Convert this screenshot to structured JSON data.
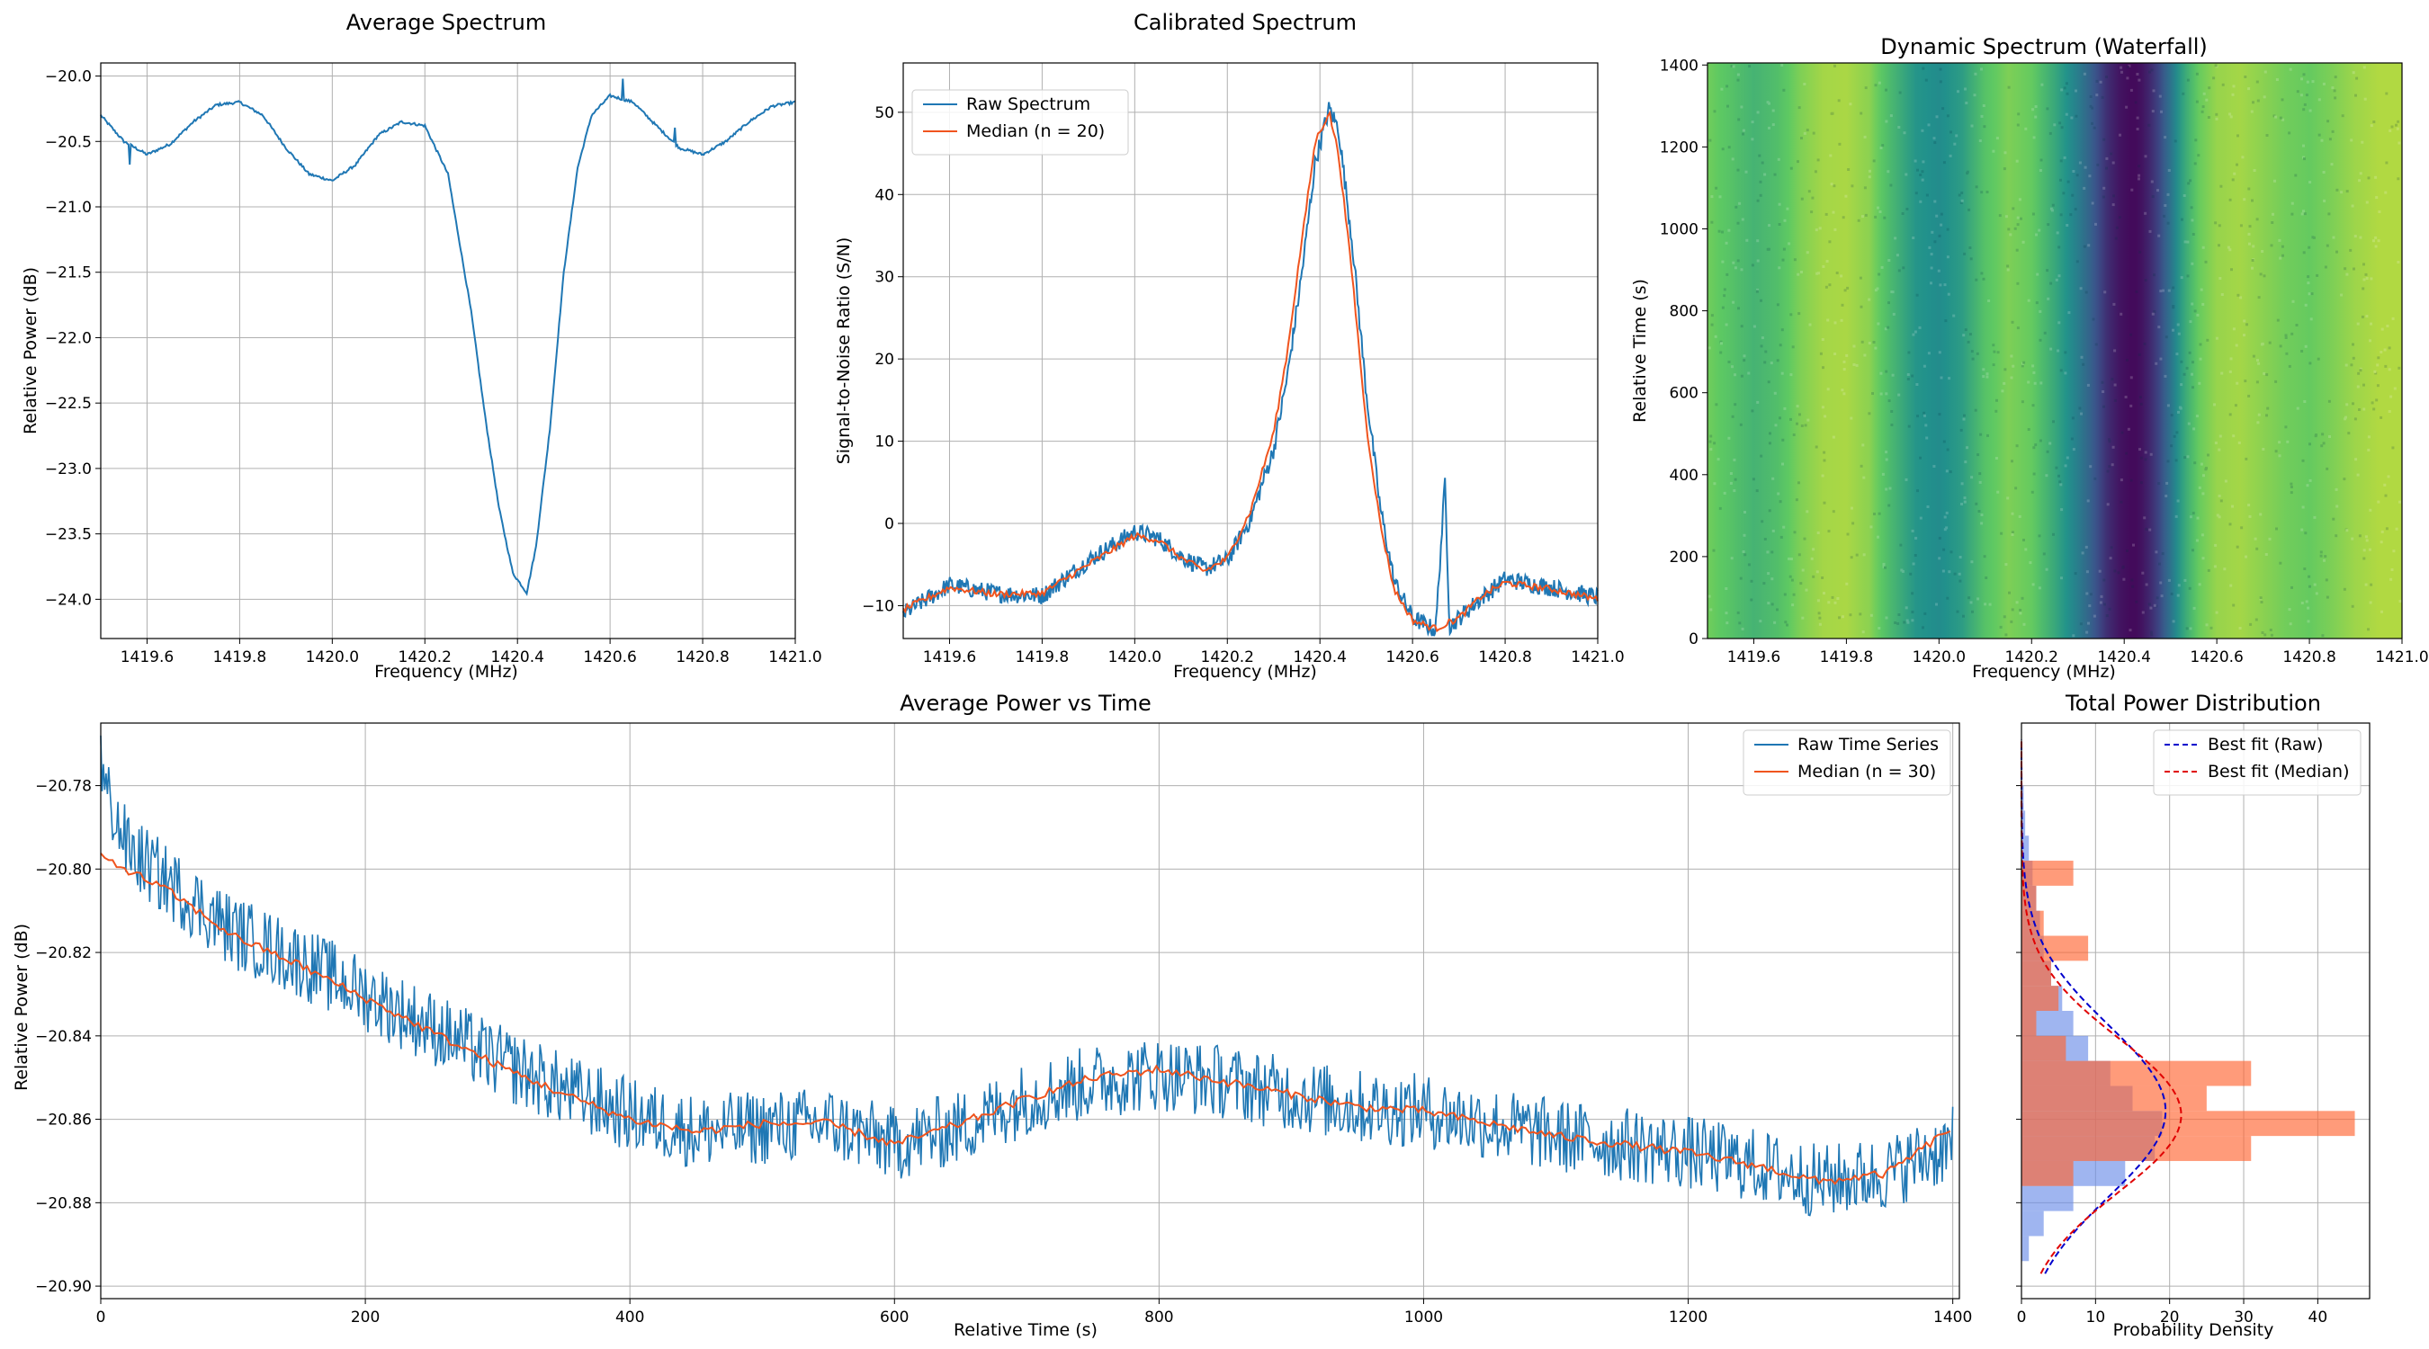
{
  "chart_data": [
    {
      "id": "avg",
      "type": "line",
      "title": "Average Spectrum",
      "xlabel": "Frequency (MHz)",
      "ylabel": "Relative Power (dB)",
      "xlim": [
        1419.5,
        1421.0
      ],
      "ylim": [
        -24.3,
        -19.9
      ],
      "xticks": [
        1419.6,
        1419.8,
        1420.0,
        1420.2,
        1420.4,
        1420.6,
        1420.8,
        1421.0
      ],
      "xtick_labels": [
        "1419.6",
        "1419.8",
        "1420.0",
        "1420.2",
        "1420.4",
        "1420.6",
        "1420.8",
        "1421.0"
      ],
      "yticks": [
        -24.0,
        -23.5,
        -23.0,
        -22.5,
        -22.0,
        -21.5,
        -21.0,
        -20.5,
        -20.0
      ],
      "ytick_labels": [
        "−24.0",
        "−23.5",
        "−23.0",
        "−22.5",
        "−22.0",
        "−21.5",
        "−21.0",
        "−20.5",
        "−20.0"
      ],
      "grid": true,
      "series": [
        {
          "color": "#1f77b4",
          "x": [
            1419.5,
            1419.55,
            1419.6,
            1419.65,
            1419.7,
            1419.75,
            1419.8,
            1419.85,
            1419.9,
            1419.95,
            1420.0,
            1420.05,
            1420.1,
            1420.15,
            1420.2,
            1420.25,
            1420.3,
            1420.33,
            1420.36,
            1420.39,
            1420.42,
            1420.44,
            1420.47,
            1420.5,
            1420.53,
            1420.56,
            1420.6,
            1420.65,
            1420.7,
            1420.75,
            1420.8,
            1420.85,
            1420.9,
            1420.95,
            1421.0
          ],
          "y": [
            -20.3,
            -20.5,
            -20.6,
            -20.52,
            -20.35,
            -20.22,
            -20.2,
            -20.3,
            -20.55,
            -20.75,
            -20.8,
            -20.68,
            -20.45,
            -20.35,
            -20.38,
            -20.75,
            -21.8,
            -22.6,
            -23.3,
            -23.8,
            -23.95,
            -23.6,
            -22.7,
            -21.5,
            -20.7,
            -20.3,
            -20.15,
            -20.2,
            -20.38,
            -20.55,
            -20.6,
            -20.5,
            -20.35,
            -20.23,
            -20.2
          ]
        }
      ]
    },
    {
      "id": "cal",
      "type": "line",
      "title": "Calibrated Spectrum",
      "xlabel": "Frequency (MHz)",
      "ylabel": "Signal-to-Noise Ratio (S/N)",
      "xlim": [
        1419.5,
        1421.0
      ],
      "ylim": [
        -14.0,
        56.0
      ],
      "xticks": [
        1419.6,
        1419.8,
        1420.0,
        1420.2,
        1420.4,
        1420.6,
        1420.8,
        1421.0
      ],
      "xtick_labels": [
        "1419.6",
        "1419.8",
        "1420.0",
        "1420.2",
        "1420.4",
        "1420.6",
        "1420.8",
        "1421.0"
      ],
      "yticks": [
        -10,
        0,
        10,
        20,
        30,
        40,
        50
      ],
      "ytick_labels": [
        "−10",
        "0",
        "10",
        "20",
        "30",
        "40",
        "50"
      ],
      "grid": true,
      "legend": {
        "position": "upper-left"
      },
      "series": [
        {
          "name": "Raw Spectrum",
          "color": "#1f77b4",
          "x": [
            1419.5,
            1419.6,
            1419.7,
            1419.8,
            1419.9,
            1420.0,
            1420.05,
            1420.1,
            1420.15,
            1420.2,
            1420.25,
            1420.3,
            1420.33,
            1420.36,
            1420.39,
            1420.42,
            1420.44,
            1420.47,
            1420.5,
            1420.53,
            1420.56,
            1420.6,
            1420.65,
            1420.67,
            1420.68,
            1420.69,
            1420.75,
            1420.8,
            1420.9,
            1421.0
          ],
          "y": [
            -11.0,
            -7.5,
            -8.5,
            -8.8,
            -4.5,
            -1.0,
            -1.8,
            -4.0,
            -5.5,
            -4.5,
            0.5,
            9.0,
            18.0,
            30.0,
            44.0,
            50.5,
            48.0,
            34.0,
            16.0,
            2.0,
            -7.0,
            -11.5,
            -13.0,
            5.0,
            -12.5,
            -12.0,
            -9.0,
            -6.8,
            -7.8,
            -9.0
          ]
        },
        {
          "name": "Median (n = 20)",
          "color": "#f0541e",
          "x": [
            1419.5,
            1419.6,
            1419.7,
            1419.8,
            1419.9,
            1420.0,
            1420.05,
            1420.1,
            1420.15,
            1420.2,
            1420.25,
            1420.3,
            1420.33,
            1420.36,
            1420.39,
            1420.42,
            1420.44,
            1420.47,
            1420.5,
            1420.53,
            1420.56,
            1420.6,
            1420.65,
            1420.7,
            1420.75,
            1420.8,
            1420.9,
            1421.0
          ],
          "y": [
            -10.5,
            -7.8,
            -8.6,
            -8.5,
            -5.0,
            -1.5,
            -2.0,
            -4.2,
            -5.8,
            -4.3,
            1.5,
            11.0,
            21.0,
            34.0,
            46.5,
            50.0,
            45.0,
            30.0,
            12.0,
            0.0,
            -8.0,
            -11.8,
            -12.8,
            -11.5,
            -8.8,
            -7.2,
            -8.0,
            -9.2
          ]
        }
      ]
    },
    {
      "id": "waterfall",
      "type": "heatmap",
      "title": "Dynamic Spectrum (Waterfall)",
      "xlabel": "Frequency (MHz)",
      "ylabel": "Relative Time (s)",
      "xlim": [
        1419.5,
        1421.0
      ],
      "ylim": [
        0,
        1405
      ],
      "xticks": [
        1419.6,
        1419.8,
        1420.0,
        1420.2,
        1420.4,
        1420.6,
        1420.8,
        1421.0
      ],
      "xtick_labels": [
        "1419.6",
        "1419.8",
        "1420.0",
        "1420.2",
        "1420.4",
        "1420.6",
        "1420.8",
        "1421.0"
      ],
      "yticks": [
        0,
        200,
        400,
        600,
        800,
        1000,
        1200,
        1400
      ],
      "ytick_labels": [
        "0",
        "200",
        "400",
        "600",
        "800",
        "1000",
        "1200",
        "1400"
      ],
      "grid": false,
      "colormap": "viridis",
      "column_values": {
        "x": [
          1419.5,
          1419.55,
          1419.6,
          1419.65,
          1419.7,
          1419.75,
          1419.8,
          1419.85,
          1419.9,
          1419.95,
          1420.0,
          1420.05,
          1420.1,
          1420.15,
          1420.2,
          1420.25,
          1420.3,
          1420.33,
          1420.36,
          1420.39,
          1420.42,
          1420.44,
          1420.47,
          1420.5,
          1420.53,
          1420.56,
          1420.6,
          1420.65,
          1420.7,
          1420.75,
          1420.8,
          1420.85,
          1420.9,
          1420.95,
          1421.0
        ],
        "level": [
          0.78,
          0.72,
          0.65,
          0.7,
          0.8,
          0.86,
          0.87,
          0.82,
          0.66,
          0.52,
          0.48,
          0.55,
          0.72,
          0.8,
          0.76,
          0.6,
          0.42,
          0.3,
          0.15,
          0.06,
          0.02,
          0.06,
          0.18,
          0.38,
          0.6,
          0.76,
          0.84,
          0.86,
          0.82,
          0.78,
          0.76,
          0.8,
          0.85,
          0.88,
          0.88
        ]
      }
    },
    {
      "id": "timeseries",
      "type": "line",
      "title": "Average Power vs Time",
      "xlabel": "Relative Time (s)",
      "ylabel": "Relative Power (dB)",
      "xlim": [
        0,
        1405
      ],
      "ylim": [
        -20.903,
        -20.765
      ],
      "xticks": [
        0,
        200,
        400,
        600,
        800,
        1000,
        1200,
        1400
      ],
      "xtick_labels": [
        "0",
        "200",
        "400",
        "600",
        "800",
        "1000",
        "1200",
        "1400"
      ],
      "yticks": [
        -20.9,
        -20.88,
        -20.86,
        -20.84,
        -20.82,
        -20.8,
        -20.78
      ],
      "ytick_labels": [
        "−20.90",
        "−20.88",
        "−20.86",
        "−20.84",
        "−20.82",
        "−20.80",
        "−20.78"
      ],
      "grid": true,
      "legend": {
        "position": "upper-right"
      },
      "series": [
        {
          "name": "Raw Time Series",
          "color": "#1f77b4",
          "noise_amplitude": 0.009,
          "x": [
            0,
            20,
            50,
            100,
            150,
            200,
            250,
            300,
            350,
            400,
            450,
            500,
            550,
            600,
            650,
            700,
            750,
            800,
            850,
            900,
            950,
            1000,
            1050,
            1100,
            1150,
            1200,
            1250,
            1300,
            1350,
            1400
          ],
          "y": [
            -20.778,
            -20.795,
            -20.803,
            -20.815,
            -20.822,
            -20.83,
            -20.838,
            -20.846,
            -20.853,
            -20.859,
            -20.863,
            -20.862,
            -20.861,
            -20.866,
            -20.862,
            -20.855,
            -20.851,
            -20.849,
            -20.851,
            -20.854,
            -20.857,
            -20.858,
            -20.861,
            -20.864,
            -20.866,
            -20.868,
            -20.871,
            -20.875,
            -20.873,
            -20.866
          ]
        },
        {
          "name": "Median (n = 30)",
          "color": "#f0541e",
          "x": [
            0,
            50,
            100,
            150,
            200,
            250,
            300,
            350,
            400,
            450,
            500,
            550,
            600,
            650,
            700,
            750,
            800,
            850,
            900,
            950,
            1000,
            1050,
            1100,
            1150,
            1200,
            1250,
            1300,
            1350,
            1400
          ],
          "y": [
            -20.797,
            -20.805,
            -20.816,
            -20.823,
            -20.831,
            -20.839,
            -20.847,
            -20.854,
            -20.86,
            -20.863,
            -20.861,
            -20.861,
            -20.866,
            -20.861,
            -20.855,
            -20.85,
            -20.848,
            -20.851,
            -20.854,
            -20.857,
            -20.858,
            -20.861,
            -20.864,
            -20.866,
            -20.868,
            -20.871,
            -20.875,
            -20.873,
            -20.862
          ]
        }
      ]
    },
    {
      "id": "dist",
      "type": "bar",
      "title": "Total Power Distribution",
      "xlabel": "Probability Density",
      "xlim": [
        0,
        47
      ],
      "ylim": [
        -20.903,
        -20.765
      ],
      "xticks": [
        0,
        10,
        20,
        30,
        40
      ],
      "xtick_labels": [
        "0",
        "10",
        "20",
        "30",
        "40"
      ],
      "grid": true,
      "legend": {
        "position": "upper-right"
      },
      "histograms": [
        {
          "name": "Raw",
          "color": "#6c8ee8",
          "bin_edges": [
            -20.894,
            -20.888,
            -20.882,
            -20.876,
            -20.87,
            -20.864,
            -20.858,
            -20.852,
            -20.846,
            -20.84,
            -20.834,
            -20.828,
            -20.822,
            -20.816,
            -20.81,
            -20.804,
            -20.798,
            -20.792,
            -20.786,
            -20.78
          ],
          "density": [
            1.0,
            3.0,
            7.0,
            14.0,
            18.0,
            19.0,
            15.0,
            12.0,
            9.0,
            7.0,
            5.5,
            4.0,
            3.0,
            2.5,
            2.0,
            1.5,
            1.0,
            0.5,
            0.3
          ]
        },
        {
          "name": "Median",
          "color": "#ff6633",
          "bin_edges": [
            -20.876,
            -20.87,
            -20.864,
            -20.858,
            -20.852,
            -20.846,
            -20.84,
            -20.834,
            -20.828,
            -20.822,
            -20.816,
            -20.81,
            -20.804,
            -20.798
          ],
          "density": [
            7.0,
            31.0,
            45.0,
            25.0,
            31.0,
            6.0,
            2.0,
            5.0,
            4.0,
            9.0,
            3.0,
            2.0,
            7.0
          ]
        }
      ],
      "fits": [
        {
          "name": "Best fit (Raw)",
          "color": "#0000cc",
          "mean": -20.858,
          "std": 0.0205
        },
        {
          "name": "Best fit (Median)",
          "color": "#e00000",
          "mean": -20.859,
          "std": 0.0185
        }
      ]
    }
  ]
}
